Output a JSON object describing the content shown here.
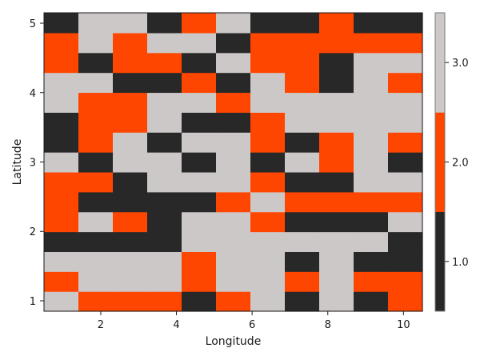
{
  "chart_data": {
    "type": "heatmap",
    "title": "",
    "xlabel": "Longitude",
    "ylabel": "Latitude",
    "x_range": [
      0.5,
      10.5
    ],
    "y_range": [
      0.85,
      5.15
    ],
    "x_ticks": [
      2,
      4,
      6,
      8,
      10
    ],
    "y_ticks": [
      1,
      2,
      3,
      4,
      5
    ],
    "x_tick_labels": [
      "2",
      "4",
      "6",
      "8",
      "10"
    ],
    "y_tick_labels": [
      "1",
      "2",
      "3",
      "4",
      "5"
    ],
    "colorbar": {
      "range": [
        0.5,
        3.5
      ],
      "ticks": [
        1.0,
        2.0,
        3.0
      ],
      "tick_labels": [
        "1.0",
        "2.0",
        "3.0"
      ],
      "levels": [
        {
          "value": 1,
          "color": "#282828"
        },
        {
          "value": 2,
          "color": "#ff4600"
        },
        {
          "value": 3,
          "color": "#cdc8c8"
        }
      ]
    },
    "grid": false,
    "rows_bottom_to_top": [
      [
        3,
        2,
        2,
        2,
        1,
        2,
        3,
        1,
        3,
        1,
        2
      ],
      [
        2,
        3,
        3,
        3,
        2,
        3,
        3,
        2,
        3,
        2,
        2
      ],
      [
        3,
        3,
        3,
        3,
        2,
        3,
        3,
        1,
        3,
        1,
        1
      ],
      [
        1,
        1,
        1,
        1,
        3,
        3,
        3,
        3,
        3,
        3,
        1
      ],
      [
        2,
        3,
        2,
        1,
        3,
        3,
        2,
        1,
        1,
        1,
        3
      ],
      [
        2,
        1,
        1,
        1,
        1,
        2,
        3,
        2,
        2,
        2,
        2
      ],
      [
        2,
        2,
        1,
        3,
        3,
        3,
        2,
        1,
        1,
        3,
        3
      ],
      [
        3,
        1,
        3,
        3,
        1,
        3,
        1,
        3,
        2,
        3,
        1
      ],
      [
        1,
        2,
        3,
        1,
        3,
        3,
        2,
        1,
        2,
        3,
        2
      ],
      [
        1,
        2,
        2,
        3,
        1,
        1,
        2,
        3,
        3,
        3,
        3
      ],
      [
        3,
        2,
        2,
        3,
        3,
        2,
        3,
        3,
        3,
        3,
        3
      ],
      [
        3,
        3,
        1,
        1,
        2,
        1,
        3,
        2,
        1,
        3,
        2
      ],
      [
        2,
        1,
        2,
        2,
        1,
        3,
        2,
        2,
        1,
        3,
        3
      ],
      [
        2,
        3,
        2,
        3,
        3,
        1,
        2,
        2,
        2,
        2,
        2
      ],
      [
        1,
        3,
        3,
        1,
        2,
        3,
        1,
        1,
        2,
        1,
        1
      ]
    ]
  }
}
